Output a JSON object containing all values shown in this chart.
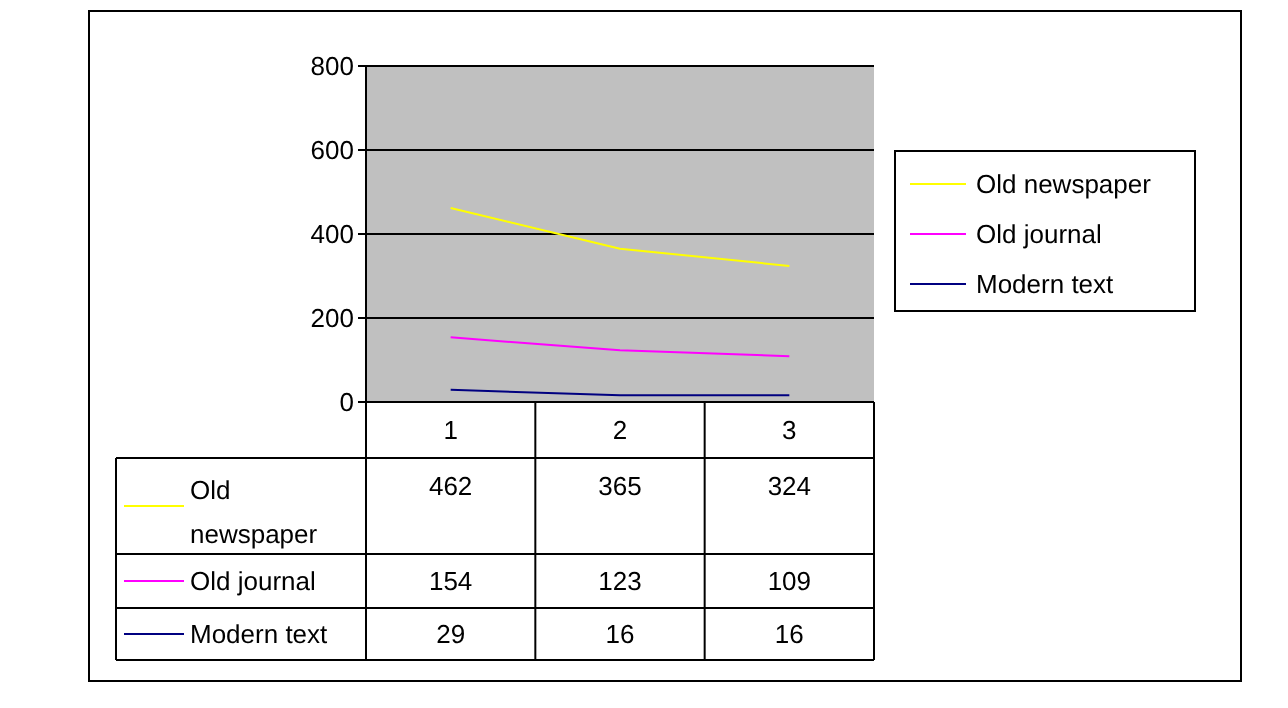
{
  "chart_data": {
    "type": "line",
    "categories": [
      "1",
      "2",
      "3"
    ],
    "series": [
      {
        "name": "Old newspaper",
        "color": "#ffff00",
        "values": [
          462,
          365,
          324
        ]
      },
      {
        "name": "Old journal",
        "color": "#ff00ff",
        "values": [
          154,
          123,
          109
        ]
      },
      {
        "name": "Modern text",
        "color": "#000080",
        "values": [
          29,
          16,
          16
        ]
      }
    ],
    "ylim": [
      0,
      800
    ],
    "yticks": [
      0,
      200,
      400,
      600,
      800
    ],
    "grid": "y",
    "legend": "right",
    "data_labels": true
  }
}
